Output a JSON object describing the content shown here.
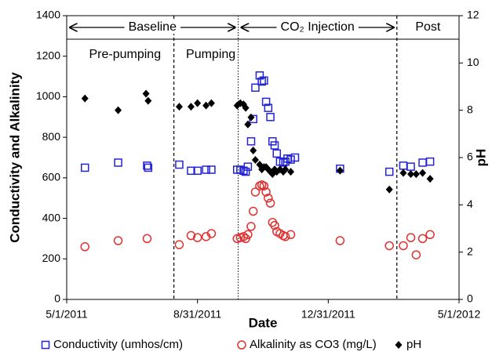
{
  "chart_data": {
    "type": "scatter",
    "x_label": "Date",
    "y_label": "Conductivity and Alkalinity",
    "y2_label": "pH",
    "xlim": [
      "2011-05-01",
      "2012-05-01"
    ],
    "xticks": [
      {
        "value": "2011-05-01",
        "label": "5/1/2011"
      },
      {
        "value": "2011-08-31",
        "label": "8/31/2011"
      },
      {
        "value": "2011-12-31",
        "label": "12/31/2011"
      },
      {
        "value": "2012-05-01",
        "label": "5/1/2012"
      }
    ],
    "ylim": [
      0,
      1400
    ],
    "yticks": [
      0,
      200,
      400,
      600,
      800,
      1000,
      1200,
      1400
    ],
    "y2lim": [
      0,
      12
    ],
    "y2ticks": [
      0,
      2,
      4,
      6,
      8,
      10,
      12
    ],
    "grid": false,
    "periods": [
      {
        "label": "Baseline",
        "start": "2011-05-01",
        "end": "2011-10-08"
      },
      {
        "label": "CO₂ Injection",
        "start": "2011-10-08",
        "end": "2012-03-04"
      },
      {
        "label": "Post",
        "start": "2012-03-04",
        "end": "2012-05-01"
      }
    ],
    "subperiods": [
      {
        "label": "Pre-pumping",
        "start": "2011-05-01",
        "end": "2011-08-09"
      },
      {
        "label": "Pumping",
        "start": "2011-08-09",
        "end": "2011-10-08"
      }
    ],
    "boundaries": [
      {
        "x": "2011-08-09",
        "style": "dashed"
      },
      {
        "x": "2011-10-08",
        "style": "dotted"
      },
      {
        "x": "2012-03-04",
        "style": "dashed"
      }
    ],
    "series": [
      {
        "name": "Conductivity (umhos/cm)",
        "color": "#2323d8",
        "marker": "square",
        "x": [
          "2011-05-18",
          "2011-06-18",
          "2011-07-15",
          "2011-07-16",
          "2011-08-14",
          "2011-08-25",
          "2011-08-31",
          "2011-09-08",
          "2011-09-13",
          "2011-10-07",
          "2011-10-10",
          "2011-10-13",
          "2011-10-15",
          "2011-10-17",
          "2011-10-20",
          "2011-10-22",
          "2011-10-24",
          "2011-10-28",
          "2011-10-30",
          "2011-11-01",
          "2011-11-03",
          "2011-11-05",
          "2011-11-07",
          "2011-11-09",
          "2011-11-11",
          "2011-11-13",
          "2011-11-16",
          "2011-11-19",
          "2011-11-21",
          "2011-11-23",
          "2011-11-26",
          "2011-11-30",
          "2012-01-11",
          "2012-02-26",
          "2012-03-10",
          "2012-03-17",
          "2012-03-28",
          "2012-04-04"
        ],
        "values": [
          650,
          675,
          660,
          650,
          665,
          635,
          635,
          640,
          640,
          640,
          640,
          635,
          630,
          655,
          780,
          890,
          1045,
          1105,
          1075,
          1080,
          975,
          945,
          900,
          780,
          760,
          720,
          680,
          675,
          680,
          695,
          690,
          700,
          645,
          630,
          660,
          655,
          675,
          680
        ]
      },
      {
        "name": "Alkalinity as CO3 (mg/L)",
        "color": "#e03030",
        "marker": "circle",
        "x": [
          "2011-05-18",
          "2011-06-18",
          "2011-07-15",
          "2011-08-14",
          "2011-08-25",
          "2011-08-31",
          "2011-09-08",
          "2011-09-13",
          "2011-10-07",
          "2011-10-10",
          "2011-10-13",
          "2011-10-15",
          "2011-10-17",
          "2011-10-20",
          "2011-10-22",
          "2011-10-24",
          "2011-10-28",
          "2011-10-30",
          "2011-11-01",
          "2011-11-03",
          "2011-11-05",
          "2011-11-07",
          "2011-11-09",
          "2011-11-11",
          "2011-11-13",
          "2011-11-16",
          "2011-11-19",
          "2011-11-21",
          "2011-11-26",
          "2012-01-11",
          "2012-02-26",
          "2012-03-10",
          "2012-03-17",
          "2012-03-22",
          "2012-03-28",
          "2012-04-04"
        ],
        "values": [
          260,
          290,
          300,
          270,
          315,
          305,
          310,
          325,
          300,
          305,
          310,
          300,
          320,
          360,
          435,
          530,
          560,
          565,
          560,
          530,
          500,
          475,
          380,
          365,
          335,
          325,
          315,
          310,
          320,
          290,
          265,
          265,
          305,
          220,
          300,
          320
        ]
      },
      {
        "name": "pH",
        "color": "#000000",
        "marker": "diamond",
        "axis": "y2",
        "x": [
          "2011-05-18",
          "2011-06-18",
          "2011-07-14",
          "2011-07-16",
          "2011-08-14",
          "2011-08-25",
          "2011-08-31",
          "2011-09-08",
          "2011-09-13",
          "2011-10-07",
          "2011-10-10",
          "2011-10-13",
          "2011-10-15",
          "2011-10-17",
          "2011-10-20",
          "2011-10-22",
          "2011-10-24",
          "2011-10-28",
          "2011-10-30",
          "2011-11-01",
          "2011-11-03",
          "2011-11-05",
          "2011-11-07",
          "2011-11-09",
          "2011-11-11",
          "2011-11-13",
          "2011-11-16",
          "2011-11-19",
          "2011-11-21",
          "2011-11-26",
          "2012-01-11",
          "2012-02-26",
          "2012-03-10",
          "2012-03-17",
          "2012-03-22",
          "2012-03-28",
          "2012-04-04"
        ],
        "values": [
          8.5,
          8.0,
          8.7,
          8.4,
          8.15,
          8.15,
          8.3,
          8.2,
          8.3,
          8.2,
          8.3,
          8.25,
          8.1,
          7.4,
          7.7,
          6.3,
          5.9,
          5.7,
          5.5,
          5.6,
          5.6,
          5.5,
          5.4,
          5.3,
          5.5,
          5.4,
          5.5,
          5.4,
          5.5,
          5.4,
          5.45,
          4.65,
          5.35,
          5.3,
          5.3,
          5.35,
          5.1
        ]
      }
    ]
  }
}
